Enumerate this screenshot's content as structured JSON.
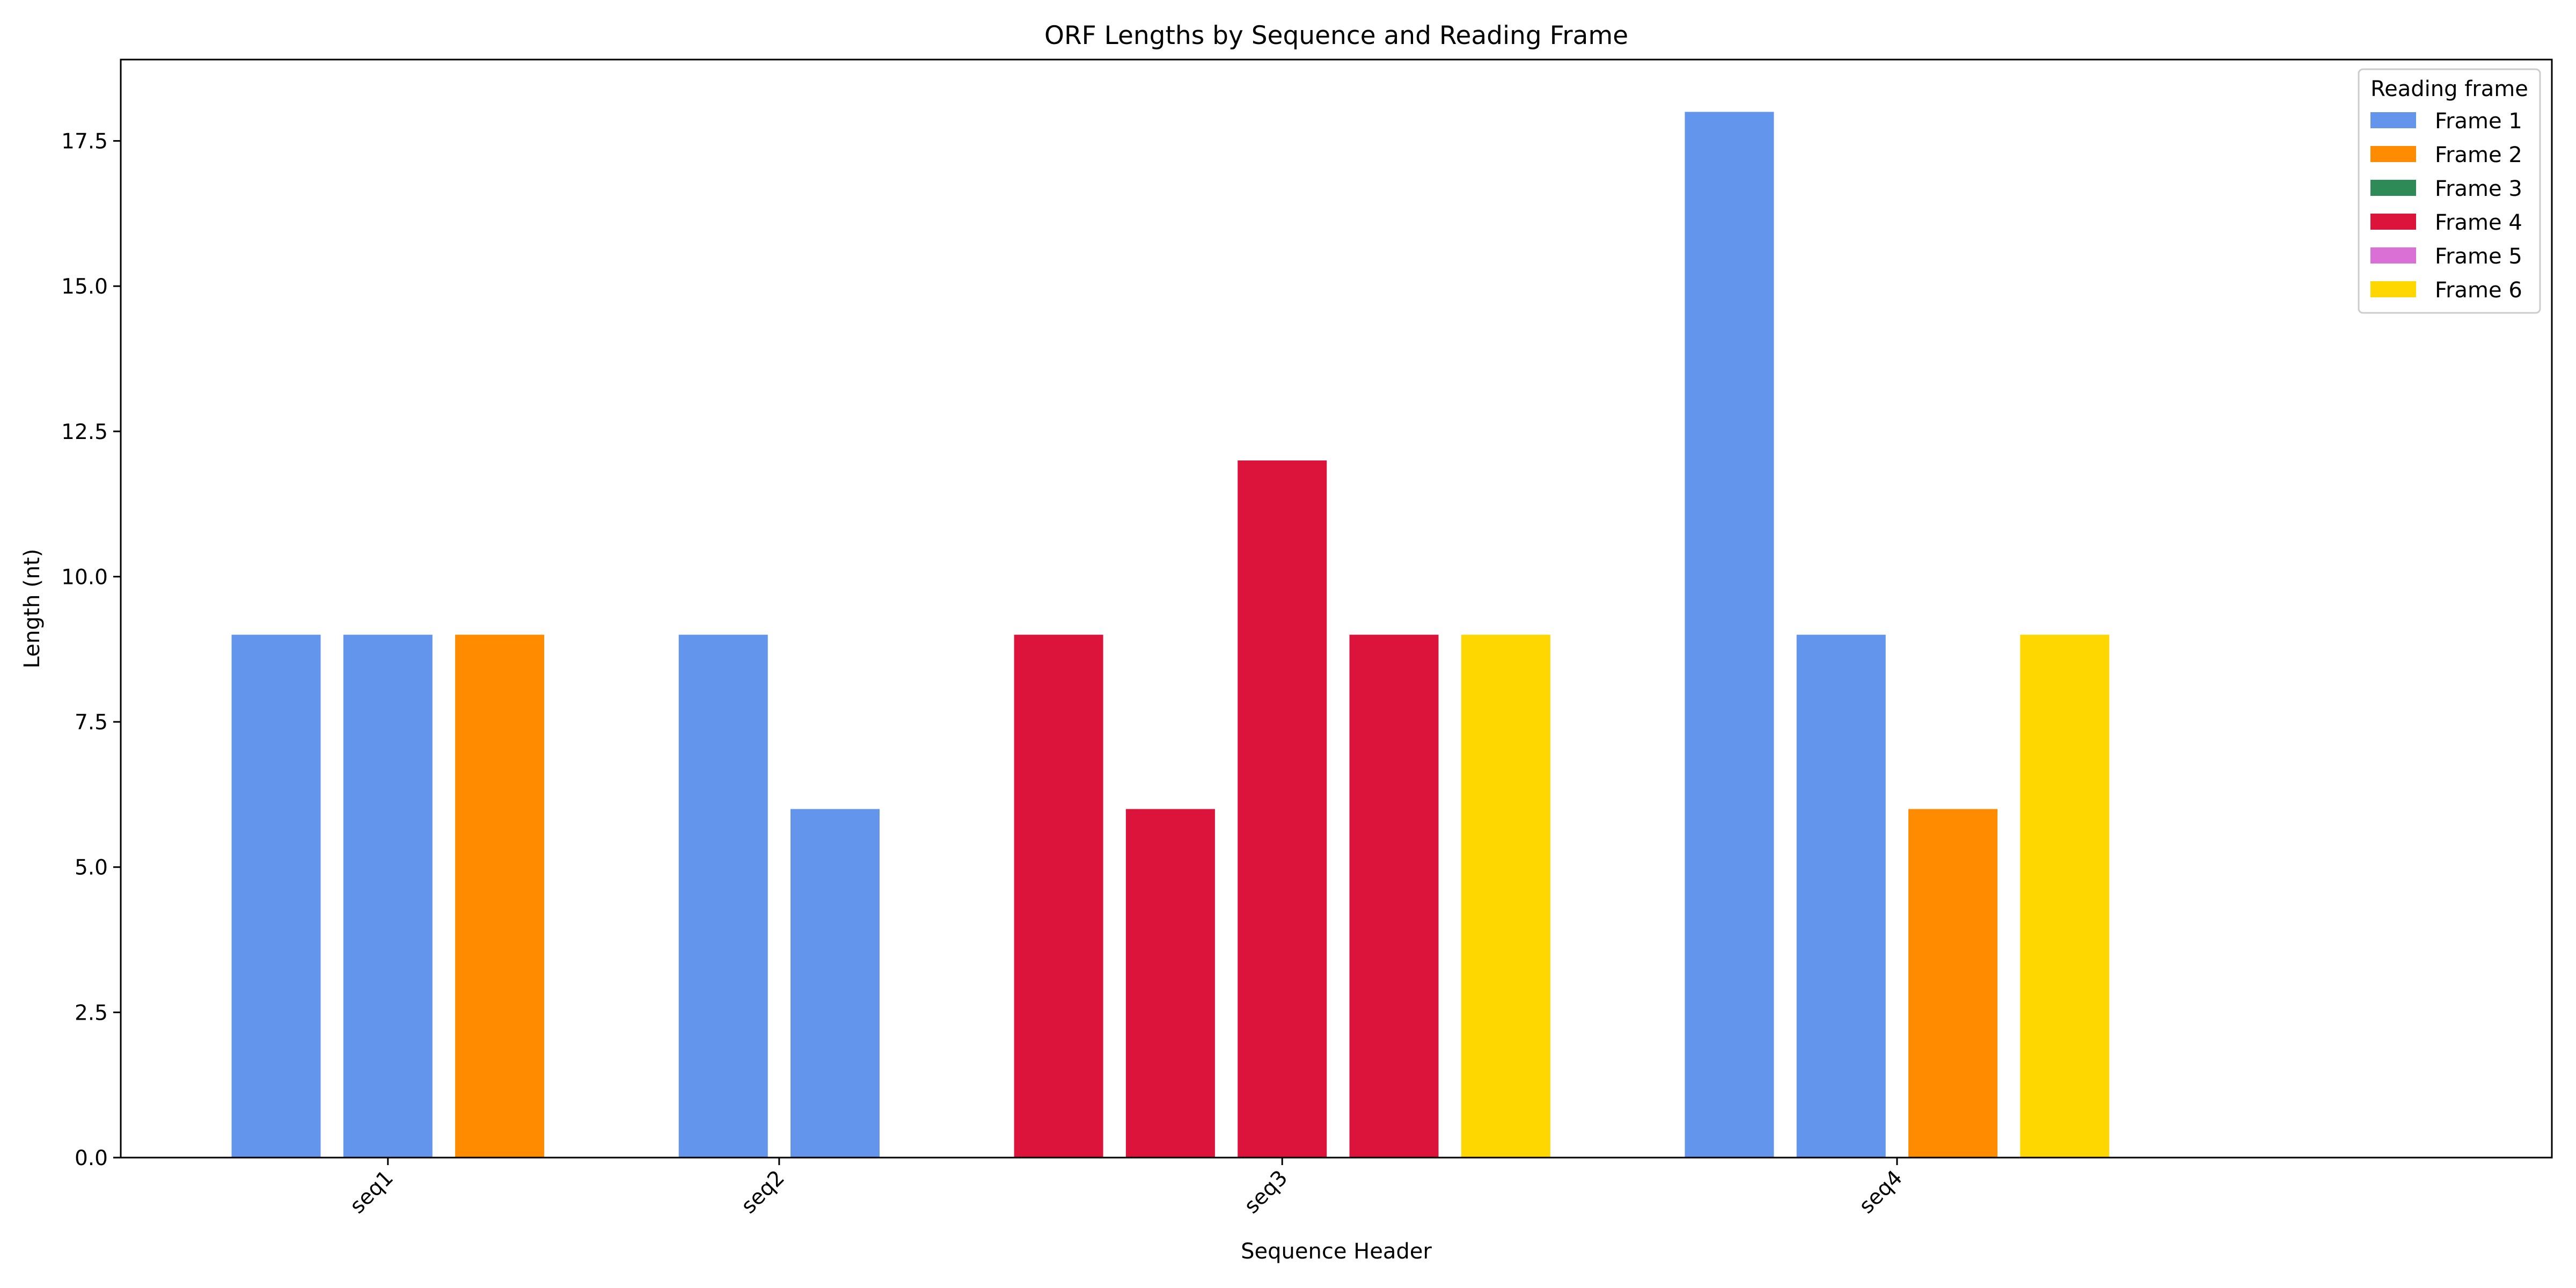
{
  "chart_data": {
    "type": "bar",
    "title": "ORF Lengths by Sequence and Reading Frame",
    "xlabel": "Sequence Header",
    "ylabel": "Length (nt)",
    "ylim": [
      0,
      18.9
    ],
    "yticks": [
      0.0,
      2.5,
      5.0,
      7.5,
      10.0,
      12.5,
      15.0,
      17.5
    ],
    "ytick_labels": [
      "0.0",
      "2.5",
      "5.0",
      "7.5",
      "10.0",
      "12.5",
      "15.0",
      "17.5"
    ],
    "grid": false,
    "legend": {
      "title": "Reading frame",
      "placement": "top-right",
      "entries": [
        {
          "name": "Frame 1",
          "color": "#6495ED"
        },
        {
          "name": "Frame 2",
          "color": "#FF8C00"
        },
        {
          "name": "Frame 3",
          "color": "#2E8B57"
        },
        {
          "name": "Frame 4",
          "color": "#DC143C"
        },
        {
          "name": "Frame 5",
          "color": "#DA70D6"
        },
        {
          "name": "Frame 6",
          "color": "#FFD700"
        }
      ]
    },
    "groups": [
      {
        "category": "seq1",
        "bars": [
          {
            "frame": 1,
            "value": 9
          },
          {
            "frame": 1,
            "value": 9
          },
          {
            "frame": 2,
            "value": 9
          }
        ]
      },
      {
        "category": "seq2",
        "bars": [
          {
            "frame": 1,
            "value": 9
          },
          {
            "frame": 1,
            "value": 6
          }
        ]
      },
      {
        "category": "seq3",
        "bars": [
          {
            "frame": 4,
            "value": 9
          },
          {
            "frame": 4,
            "value": 6
          },
          {
            "frame": 4,
            "value": 12
          },
          {
            "frame": 4,
            "value": 9
          },
          {
            "frame": 6,
            "value": 9
          }
        ]
      },
      {
        "category": "seq4",
        "bars": [
          {
            "frame": 1,
            "value": 18
          },
          {
            "frame": 1,
            "value": 9
          },
          {
            "frame": 2,
            "value": 6
          },
          {
            "frame": 6,
            "value": 9
          }
        ]
      }
    ]
  }
}
